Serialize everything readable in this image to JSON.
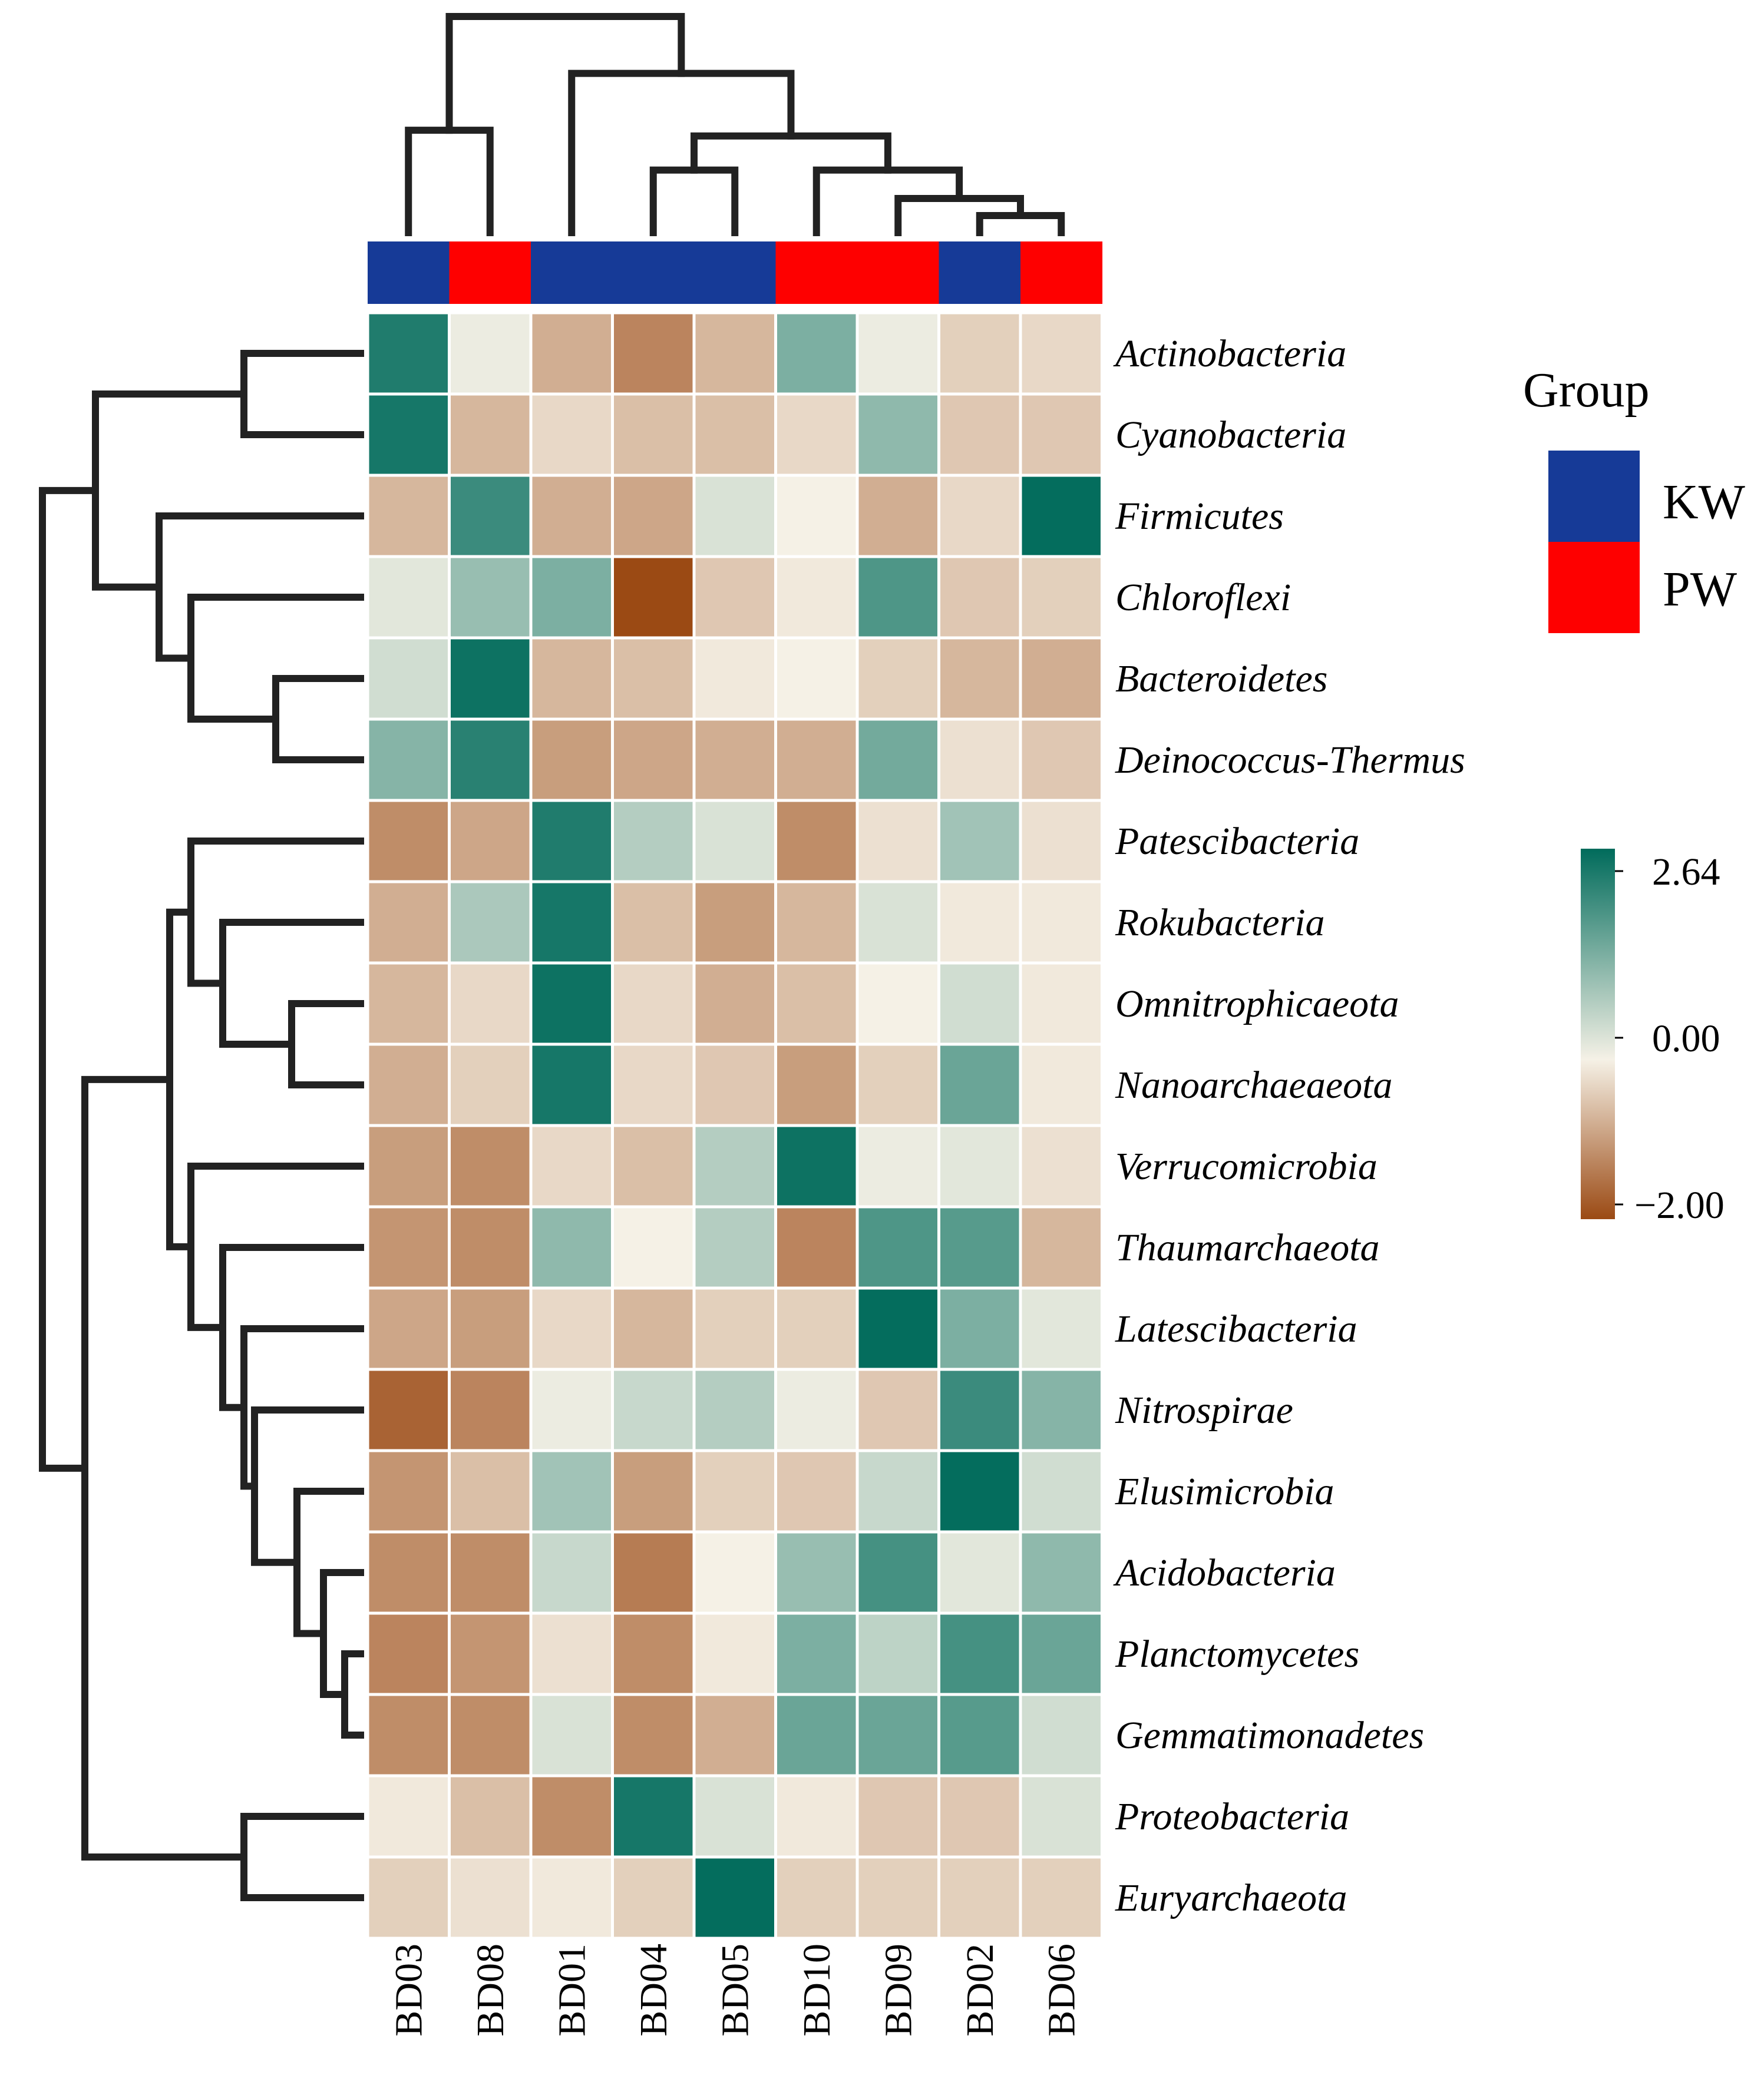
{
  "chart_data": {
    "type": "heatmap",
    "title": "",
    "columns": [
      "BD03",
      "BD08",
      "BD01",
      "BD04",
      "BD05",
      "BD10",
      "BD09",
      "BD02",
      "BD06"
    ],
    "column_groups": [
      "KW",
      "PW",
      "KW",
      "KW",
      "KW",
      "PW",
      "PW",
      "KW",
      "PW"
    ],
    "rows": [
      "Actinobacteria",
      "Cyanobacteria",
      "Firmicutes",
      "Chloroflexi",
      "Bacteroidetes",
      "Deinococcus-Thermus",
      "Patescibacteria",
      "Rokubacteria",
      "Omnitrophicaeota",
      "Nanoarchaeaeota",
      "Verrucomicrobia",
      "Thaumarchaeota",
      "Latescibacteria",
      "Nitrospirae",
      "Elusimicrobia",
      "Acidobacteria",
      "Planctomycetes",
      "Gemmatimonadetes",
      "Proteobacteria",
      "Euryarchaeota"
    ],
    "values": [
      [
        2.3,
        0.1,
        -0.8,
        -1.3,
        -0.7,
        1.3,
        0.1,
        -0.4,
        -0.3
      ],
      [
        2.4,
        -0.7,
        -0.3,
        -0.6,
        -0.6,
        -0.3,
        1.1,
        -0.5,
        -0.5
      ],
      [
        -0.7,
        2.0,
        -0.8,
        -0.9,
        0.3,
        0.0,
        -0.8,
        -0.3,
        2.6
      ],
      [
        0.2,
        1.0,
        1.3,
        -2.0,
        -0.5,
        -0.1,
        1.8,
        -0.5,
        -0.4
      ],
      [
        0.4,
        2.5,
        -0.7,
        -0.6,
        -0.1,
        0.0,
        -0.4,
        -0.7,
        -0.8
      ],
      [
        1.2,
        2.2,
        -1.0,
        -0.9,
        -0.8,
        -0.8,
        1.4,
        -0.2,
        -0.5
      ],
      [
        -1.2,
        -0.9,
        2.3,
        0.7,
        0.3,
        -1.2,
        -0.2,
        0.9,
        -0.2
      ],
      [
        -0.8,
        0.8,
        2.4,
        -0.6,
        -1.0,
        -0.7,
        0.3,
        -0.1,
        -0.1
      ],
      [
        -0.7,
        -0.3,
        2.5,
        -0.3,
        -0.8,
        -0.6,
        0.0,
        0.4,
        -0.1
      ],
      [
        -0.8,
        -0.4,
        2.4,
        -0.3,
        -0.5,
        -1.0,
        -0.4,
        1.5,
        -0.1
      ],
      [
        -1.0,
        -1.2,
        -0.3,
        -0.6,
        0.7,
        2.5,
        0.1,
        0.2,
        -0.2
      ],
      [
        -1.1,
        -1.2,
        1.1,
        0.0,
        0.7,
        -1.3,
        1.8,
        1.7,
        -0.7
      ],
      [
        -0.9,
        -1.0,
        -0.3,
        -0.7,
        -0.4,
        -0.4,
        2.6,
        1.3,
        0.2
      ],
      [
        -1.7,
        -1.3,
        0.1,
        0.5,
        0.7,
        0.1,
        -0.5,
        2.0,
        1.2
      ],
      [
        -1.1,
        -0.6,
        0.9,
        -1.0,
        -0.4,
        -0.5,
        0.5,
        2.6,
        0.4
      ],
      [
        -1.2,
        -1.2,
        0.5,
        -1.4,
        0.0,
        1.0,
        1.9,
        0.2,
        1.1
      ],
      [
        -1.3,
        -1.1,
        -0.2,
        -1.2,
        -0.1,
        1.3,
        0.6,
        1.9,
        1.5
      ],
      [
        -1.2,
        -1.2,
        0.3,
        -1.2,
        -0.8,
        1.5,
        1.5,
        1.7,
        0.4
      ],
      [
        -0.1,
        -0.6,
        -1.2,
        2.4,
        0.3,
        -0.1,
        -0.5,
        -0.5,
        0.3
      ],
      [
        -0.4,
        -0.2,
        -0.1,
        -0.4,
        2.6,
        -0.4,
        -0.4,
        -0.4,
        -0.4
      ]
    ],
    "color_scale": {
      "min": -2.0,
      "mid": 0.0,
      "max": 2.64,
      "tick_labels": [
        "2.64",
        "0.00",
        "−2.00"
      ],
      "colors": {
        "low": "#9b4a14",
        "mid": "#f5f1e6",
        "high": "#006b5b"
      }
    },
    "legend": {
      "title": "Group",
      "entries": [
        {
          "label": "KW",
          "color": "#163a97"
        },
        {
          "label": "PW",
          "color": "#fe0000"
        }
      ],
      "placement": "right"
    },
    "dendrogram": {
      "color": "#222222",
      "columns": {
        "leaves": 9,
        "merges": [
          [
            7,
            8,
            0.15
          ],
          [
            6,
            9,
            0.3
          ],
          [
            5,
            10,
            0.55
          ],
          [
            3,
            4,
            0.55
          ],
          [
            11,
            12,
            0.85
          ],
          [
            2,
            13,
            1.4
          ],
          [
            0,
            1,
            0.9
          ],
          [
            14,
            15,
            1.9
          ]
        ]
      },
      "rows": {
        "leaves": 20,
        "merges": [
          [
            0,
            1,
            1.1
          ],
          [
            4,
            5,
            0.8
          ],
          [
            3,
            21,
            1.6
          ],
          [
            2,
            22,
            1.9
          ],
          [
            20,
            23,
            2.5
          ],
          [
            8,
            9,
            0.65
          ],
          [
            7,
            25,
            1.3
          ],
          [
            6,
            26,
            1.6
          ],
          [
            16,
            17,
            0.15
          ],
          [
            15,
            28,
            0.35
          ],
          [
            14,
            29,
            0.6
          ],
          [
            13,
            30,
            1.0
          ],
          [
            12,
            31,
            1.1
          ],
          [
            11,
            32,
            1.3
          ],
          [
            10,
            33,
            1.6
          ],
          [
            27,
            34,
            1.8
          ],
          [
            18,
            19,
            1.1
          ],
          [
            35,
            36,
            2.6
          ],
          [
            24,
            37,
            3.0
          ]
        ]
      }
    }
  }
}
